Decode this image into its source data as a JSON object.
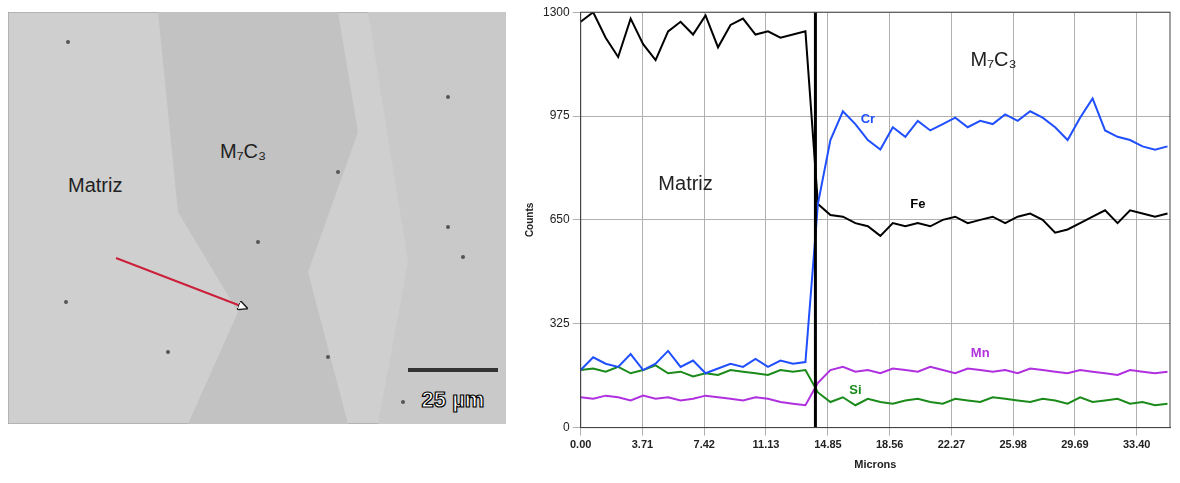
{
  "micrograph": {
    "labels": [
      "Matriz",
      "M₇C₃"
    ],
    "scale_bar": "25 µm"
  },
  "chart_data": {
    "type": "line",
    "x_label": "Microns",
    "y_label": "Counts",
    "annotations": [
      {
        "text": "Matriz",
        "x": 6.3,
        "y": 760
      },
      {
        "text": "M₇C₃",
        "x": 24.8,
        "y": 1150
      }
    ],
    "boundary_x": 14.1,
    "x": [
      0,
      0.75,
      1.5,
      2.25,
      3,
      3.75,
      4.5,
      5.25,
      6,
      6.75,
      7.5,
      8.25,
      9,
      9.75,
      10.5,
      11.25,
      12,
      12.75,
      13.5,
      14.25,
      15,
      15.75,
      16.5,
      17.25,
      18,
      18.75,
      19.5,
      20.25,
      21,
      21.75,
      22.5,
      23.25,
      24,
      24.75,
      25.5,
      26.25,
      27,
      27.75,
      28.5,
      29.25,
      30,
      30.75,
      31.5,
      32.25,
      33,
      33.75,
      34.5,
      35.25
    ],
    "series": [
      {
        "name": "Cr",
        "color": "#1f4fff",
        "values": [
          180,
          220,
          200,
          190,
          230,
          180,
          200,
          240,
          190,
          210,
          170,
          185,
          200,
          190,
          215,
          190,
          210,
          200,
          205,
          700,
          900,
          990,
          950,
          900,
          870,
          940,
          910,
          960,
          930,
          950,
          970,
          940,
          960,
          950,
          980,
          960,
          990,
          970,
          940,
          900,
          970,
          1030,
          930,
          910,
          900,
          880,
          870,
          880
        ]
      },
      {
        "name": "Fe",
        "color": "#000000",
        "values": [
          1270,
          1300,
          1220,
          1160,
          1280,
          1200,
          1150,
          1240,
          1270,
          1230,
          1290,
          1190,
          1260,
          1280,
          1230,
          1240,
          1220,
          1230,
          1240,
          700,
          665,
          660,
          640,
          630,
          600,
          640,
          630,
          640,
          630,
          650,
          660,
          640,
          650,
          660,
          640,
          660,
          670,
          650,
          610,
          620,
          640,
          660,
          680,
          640,
          680,
          670,
          660,
          670
        ]
      },
      {
        "name": "Mn",
        "color": "#b030e0",
        "values": [
          95,
          90,
          100,
          95,
          85,
          100,
          90,
          95,
          85,
          90,
          100,
          95,
          90,
          85,
          95,
          90,
          80,
          75,
          70,
          140,
          180,
          190,
          175,
          180,
          170,
          185,
          180,
          175,
          190,
          180,
          170,
          185,
          180,
          175,
          180,
          170,
          185,
          180,
          175,
          170,
          180,
          175,
          170,
          165,
          180,
          175,
          170,
          175
        ]
      },
      {
        "name": "Si",
        "color": "#1a8a1a",
        "values": [
          180,
          185,
          175,
          190,
          170,
          180,
          195,
          170,
          175,
          160,
          170,
          165,
          180,
          175,
          170,
          165,
          180,
          175,
          180,
          110,
          80,
          95,
          70,
          90,
          80,
          75,
          85,
          90,
          80,
          75,
          90,
          85,
          80,
          95,
          90,
          85,
          80,
          90,
          85,
          75,
          95,
          80,
          85,
          90,
          75,
          80,
          70,
          75
        ]
      }
    ],
    "xlim": [
      0,
      35.4
    ],
    "xticks": [
      {
        "value": 0,
        "label": "0.00"
      },
      3.71,
      7.42,
      11.13,
      14.85,
      18.56,
      22.27,
      25.98,
      29.69,
      {
        "value": 33.4,
        "label": "33.40"
      }
    ],
    "ylim": [
      0,
      1300
    ],
    "yticks": [
      0,
      325,
      650,
      975,
      1300
    ],
    "grid": true,
    "tick_labels": true
  }
}
